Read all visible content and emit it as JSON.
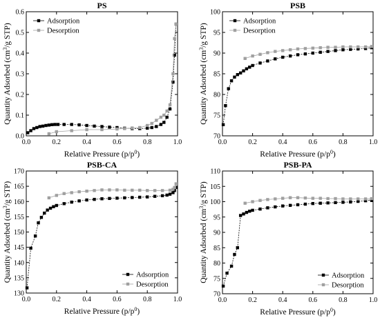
{
  "chart_data": [
    {
      "type": "scatter",
      "title": "PS",
      "xlabel": "Relative Pressure (p/p0)",
      "ylabel": "Quantity Adsorbed (cm3/g STP)",
      "xlim": [
        0,
        1.0
      ],
      "ylim": [
        0,
        0.6
      ],
      "xticks": [
        "0.0",
        "0.2",
        "0.4",
        "0.6",
        "0.8",
        "1.0"
      ],
      "yticks": [
        "0.0",
        "0.1",
        "0.2",
        "0.3",
        "0.4",
        "0.5",
        "0.6"
      ],
      "legend_position": "top-left",
      "series": [
        {
          "name": "Adsorption",
          "color": "#000000",
          "x": [
            0.01,
            0.03,
            0.05,
            0.07,
            0.09,
            0.11,
            0.13,
            0.15,
            0.17,
            0.19,
            0.21,
            0.25,
            0.3,
            0.35,
            0.4,
            0.45,
            0.5,
            0.55,
            0.6,
            0.65,
            0.7,
            0.75,
            0.8,
            0.83,
            0.86,
            0.89,
            0.91,
            0.93,
            0.95,
            0.97,
            0.98,
            0.99
          ],
          "y": [
            0.015,
            0.025,
            0.035,
            0.04,
            0.045,
            0.047,
            0.05,
            0.052,
            0.054,
            0.055,
            0.055,
            0.055,
            0.055,
            0.053,
            0.05,
            0.047,
            0.045,
            0.042,
            0.04,
            0.037,
            0.035,
            0.035,
            0.037,
            0.04,
            0.045,
            0.055,
            0.065,
            0.09,
            0.13,
            0.26,
            0.39,
            0.54
          ]
        },
        {
          "name": "Desorption",
          "color": "#a0a0a0",
          "x": [
            0.99,
            0.98,
            0.97,
            0.95,
            0.93,
            0.91,
            0.89,
            0.86,
            0.83,
            0.8,
            0.75,
            0.7,
            0.65,
            0.6,
            0.5,
            0.4,
            0.3,
            0.2,
            0.15
          ],
          "y": [
            0.54,
            0.47,
            0.3,
            0.15,
            0.12,
            0.1,
            0.09,
            0.075,
            0.06,
            0.05,
            0.04,
            0.038,
            0.035,
            0.033,
            0.03,
            0.03,
            0.025,
            0.02,
            0.01
          ]
        }
      ]
    },
    {
      "type": "scatter",
      "title": "PSB",
      "xlabel": "Relative Pressure (p/p0)",
      "ylabel": "Quantity Adsorbed (cm3/g STP)",
      "xlim": [
        0,
        1.0
      ],
      "ylim": [
        70,
        100
      ],
      "xticks": [
        "0.0",
        "0.2",
        "0.4",
        "0.6",
        "0.8",
        "1.0"
      ],
      "yticks": [
        "70",
        "75",
        "80",
        "85",
        "90",
        "95",
        "100"
      ],
      "legend_position": "top-left",
      "series": [
        {
          "name": "Adsorption",
          "color": "#000000",
          "x": [
            0.005,
            0.02,
            0.04,
            0.06,
            0.08,
            0.1,
            0.12,
            0.14,
            0.16,
            0.18,
            0.2,
            0.25,
            0.3,
            0.35,
            0.4,
            0.45,
            0.5,
            0.55,
            0.6,
            0.65,
            0.7,
            0.75,
            0.8,
            0.85,
            0.9,
            0.95,
            0.99
          ],
          "y": [
            72.7,
            77.3,
            81.4,
            83.3,
            84.2,
            84.8,
            85.2,
            85.7,
            86.2,
            86.6,
            87.0,
            87.6,
            88.1,
            88.6,
            89.0,
            89.3,
            89.6,
            89.8,
            90.0,
            90.2,
            90.4,
            90.6,
            90.8,
            90.9,
            91.0,
            91.1,
            91.3
          ]
        },
        {
          "name": "Desorption",
          "color": "#a0a0a0",
          "x": [
            0.99,
            0.95,
            0.9,
            0.85,
            0.8,
            0.75,
            0.7,
            0.65,
            0.6,
            0.55,
            0.5,
            0.45,
            0.4,
            0.35,
            0.3,
            0.25,
            0.2,
            0.15
          ],
          "y": [
            91.6,
            91.5,
            91.5,
            91.5,
            91.5,
            91.4,
            91.4,
            91.3,
            91.2,
            91.1,
            91.0,
            90.8,
            90.6,
            90.4,
            90.1,
            89.7,
            89.3,
            88.7
          ]
        }
      ]
    },
    {
      "type": "scatter",
      "title": "PSB-CA",
      "xlabel": "Relative Pressure (p/p0)",
      "ylabel": "Quantity Adsorbed (cm3/g STP)",
      "xlim": [
        0,
        1.0
      ],
      "ylim": [
        130,
        170
      ],
      "xticks": [
        "0.0",
        "0.2",
        "0.4",
        "0.6",
        "0.8",
        "1.0"
      ],
      "yticks": [
        "130",
        "135",
        "140",
        "145",
        "150",
        "155",
        "160",
        "165",
        "170"
      ],
      "legend_position": "bottom-right",
      "series": [
        {
          "name": "Adsorption",
          "color": "#000000",
          "x": [
            0.005,
            0.03,
            0.06,
            0.08,
            0.1,
            0.12,
            0.14,
            0.16,
            0.18,
            0.2,
            0.25,
            0.3,
            0.35,
            0.4,
            0.45,
            0.5,
            0.55,
            0.6,
            0.65,
            0.7,
            0.75,
            0.8,
            0.85,
            0.9,
            0.93,
            0.95,
            0.97,
            0.98,
            0.99
          ],
          "y": [
            131.7,
            144.7,
            148.7,
            153.0,
            154.8,
            156.2,
            157.2,
            157.8,
            158.3,
            158.7,
            159.3,
            159.8,
            160.2,
            160.5,
            160.7,
            160.9,
            161.0,
            161.1,
            161.2,
            161.3,
            161.4,
            161.5,
            161.7,
            161.9,
            162.1,
            162.4,
            162.9,
            163.6,
            164.6
          ]
        },
        {
          "name": "Desorption",
          "color": "#a0a0a0",
          "x": [
            0.99,
            0.98,
            0.97,
            0.95,
            0.9,
            0.85,
            0.8,
            0.75,
            0.7,
            0.65,
            0.6,
            0.55,
            0.5,
            0.45,
            0.4,
            0.35,
            0.3,
            0.25,
            0.2,
            0.15
          ],
          "y": [
            165.8,
            164.6,
            164.0,
            163.7,
            163.6,
            163.6,
            163.6,
            163.7,
            163.7,
            163.7,
            163.8,
            163.8,
            163.8,
            163.6,
            163.4,
            163.2,
            162.9,
            162.6,
            162.0,
            161.2
          ]
        }
      ]
    },
    {
      "type": "scatter",
      "title": "PSB-PA",
      "xlabel": "Relative Pressure (p/p0)",
      "ylabel": "Quantity Adsorbed (cm3/g STP)",
      "xlim": [
        0,
        1.0
      ],
      "ylim": [
        70,
        110
      ],
      "xticks": [
        "0.0",
        "0.2",
        "0.4",
        "0.6",
        "0.8",
        "1.0"
      ],
      "yticks": [
        "70",
        "75",
        "80",
        "85",
        "90",
        "95",
        "100",
        "105",
        "110"
      ],
      "legend_position": "bottom-right",
      "series": [
        {
          "name": "Adsorption",
          "color": "#000000",
          "x": [
            0.005,
            0.03,
            0.06,
            0.08,
            0.1,
            0.12,
            0.14,
            0.16,
            0.18,
            0.2,
            0.25,
            0.3,
            0.35,
            0.4,
            0.45,
            0.5,
            0.55,
            0.6,
            0.65,
            0.7,
            0.75,
            0.8,
            0.85,
            0.9,
            0.95,
            0.99
          ],
          "y": [
            72.5,
            76.7,
            79.0,
            82.8,
            85.0,
            95.5,
            96.0,
            96.5,
            96.9,
            97.2,
            97.6,
            98.0,
            98.3,
            98.6,
            98.8,
            99.0,
            99.2,
            99.4,
            99.5,
            99.6,
            99.7,
            99.8,
            99.9,
            100.1,
            100.3,
            100.6
          ]
        },
        {
          "name": "Desorption",
          "color": "#a0a0a0",
          "x": [
            0.99,
            0.95,
            0.9,
            0.85,
            0.8,
            0.75,
            0.7,
            0.65,
            0.6,
            0.55,
            0.5,
            0.45,
            0.4,
            0.35,
            0.3,
            0.25,
            0.2,
            0.15
          ],
          "y": [
            101.0,
            100.9,
            100.9,
            100.9,
            100.9,
            101.0,
            101.0,
            101.1,
            101.1,
            101.2,
            101.3,
            101.3,
            101.1,
            100.9,
            100.7,
            100.4,
            100.0,
            99.5
          ]
        }
      ]
    }
  ]
}
